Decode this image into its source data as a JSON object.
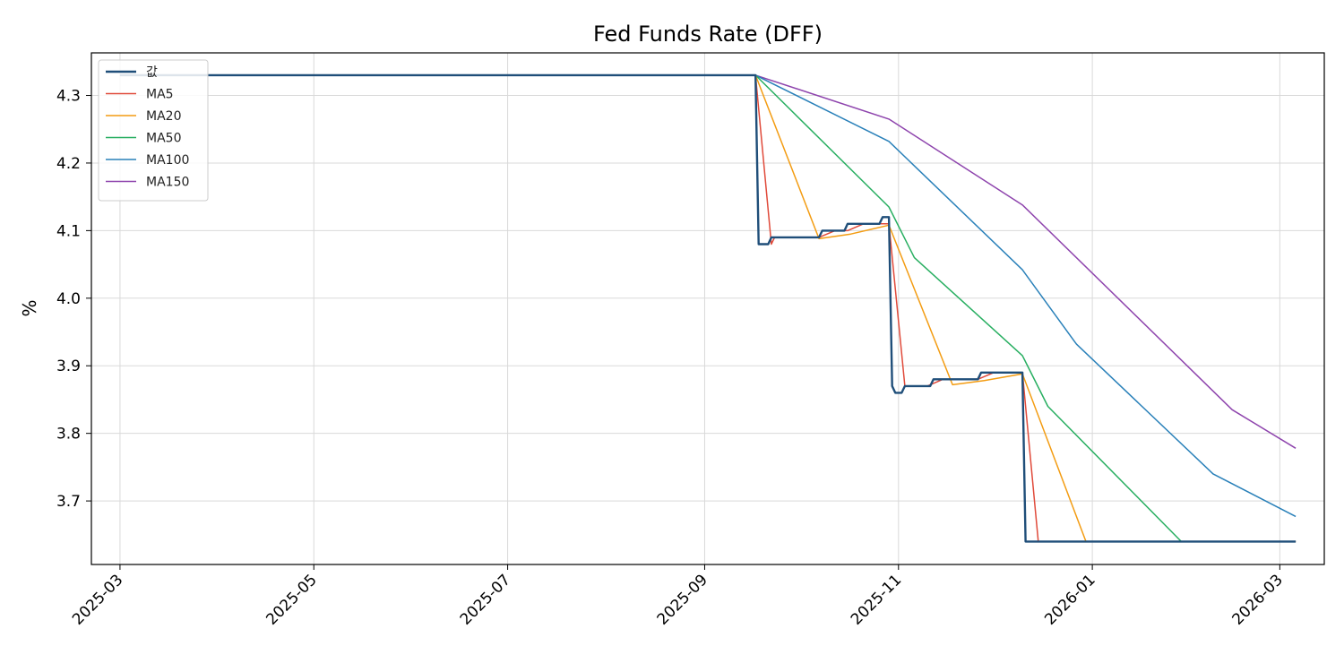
{
  "chart_data": {
    "type": "line",
    "title": "Fed Funds Rate (DFF)",
    "xlabel": "",
    "ylabel": "%",
    "x_ticks": [
      "2025-03",
      "2025-05",
      "2025-07",
      "2025-09",
      "2025-11",
      "2026-01",
      "2026-03"
    ],
    "y_ticks": [
      "3.7",
      "3.8",
      "3.9",
      "4.0",
      "4.1",
      "4.2",
      "4.3"
    ],
    "xlim": [
      "2025-02-20",
      "2026-03-15"
    ],
    "ylim": [
      3.606,
      4.363
    ],
    "grid": true,
    "legend_position": "top-left",
    "series": [
      {
        "name": "값",
        "color": "#1f4e79",
        "width": 2.4,
        "points": [
          [
            "2025-03-01",
            4.33
          ],
          [
            "2025-09-17",
            4.33
          ],
          [
            "2025-09-18",
            4.08
          ],
          [
            "2025-09-21",
            4.08
          ],
          [
            "2025-09-22",
            4.09
          ],
          [
            "2025-10-07",
            4.09
          ],
          [
            "2025-10-08",
            4.1
          ],
          [
            "2025-10-15",
            4.1
          ],
          [
            "2025-10-16",
            4.11
          ],
          [
            "2025-10-26",
            4.11
          ],
          [
            "2025-10-27",
            4.12
          ],
          [
            "2025-10-29",
            4.12
          ],
          [
            "2025-10-30",
            3.87
          ],
          [
            "2025-10-31",
            3.86
          ],
          [
            "2025-11-02",
            3.86
          ],
          [
            "2025-11-03",
            3.87
          ],
          [
            "2025-11-11",
            3.87
          ],
          [
            "2025-11-12",
            3.88
          ],
          [
            "2025-11-26",
            3.88
          ],
          [
            "2025-11-27",
            3.89
          ],
          [
            "2025-12-10",
            3.89
          ],
          [
            "2025-12-11",
            3.64
          ],
          [
            "2026-03-06",
            3.64
          ]
        ]
      },
      {
        "name": "MA5",
        "color": "#e04a3a",
        "width": 1.5,
        "points": [
          [
            "2025-03-01",
            4.33
          ],
          [
            "2025-09-17",
            4.33
          ],
          [
            "2025-09-22",
            4.08
          ],
          [
            "2025-09-23",
            4.09
          ],
          [
            "2025-10-07",
            4.09
          ],
          [
            "2025-10-12",
            4.1
          ],
          [
            "2025-10-16",
            4.1
          ],
          [
            "2025-10-21",
            4.11
          ],
          [
            "2025-10-29",
            4.11
          ],
          [
            "2025-11-03",
            3.87
          ],
          [
            "2025-11-10",
            3.87
          ],
          [
            "2025-11-15",
            3.88
          ],
          [
            "2025-11-26",
            3.88
          ],
          [
            "2025-12-01",
            3.89
          ],
          [
            "2025-12-10",
            3.89
          ],
          [
            "2025-12-15",
            3.64
          ],
          [
            "2026-03-06",
            3.64
          ]
        ]
      },
      {
        "name": "MA20",
        "color": "#f39c12",
        "width": 1.5,
        "points": [
          [
            "2025-03-01",
            4.33
          ],
          [
            "2025-09-17",
            4.33
          ],
          [
            "2025-10-07",
            4.088
          ],
          [
            "2025-10-17",
            4.095
          ],
          [
            "2025-10-29",
            4.108
          ],
          [
            "2025-11-18",
            3.872
          ],
          [
            "2025-11-28",
            3.878
          ],
          [
            "2025-12-10",
            3.888
          ],
          [
            "2025-12-30",
            3.64
          ],
          [
            "2026-03-06",
            3.64
          ]
        ]
      },
      {
        "name": "MA50",
        "color": "#27ae60",
        "width": 1.5,
        "points": [
          [
            "2025-03-01",
            4.33
          ],
          [
            "2025-09-17",
            4.33
          ],
          [
            "2025-10-29",
            4.135
          ],
          [
            "2025-11-06",
            4.06
          ],
          [
            "2025-12-10",
            3.915
          ],
          [
            "2025-12-18",
            3.84
          ],
          [
            "2026-01-29",
            3.64
          ],
          [
            "2026-03-06",
            3.64
          ]
        ]
      },
      {
        "name": "MA100",
        "color": "#2980b9",
        "width": 1.5,
        "points": [
          [
            "2025-03-01",
            4.33
          ],
          [
            "2025-09-17",
            4.33
          ],
          [
            "2025-10-29",
            4.232
          ],
          [
            "2025-12-10",
            4.042
          ],
          [
            "2025-12-27",
            3.932
          ],
          [
            "2026-02-08",
            3.74
          ],
          [
            "2026-03-06",
            3.677
          ]
        ]
      },
      {
        "name": "MA150",
        "color": "#8e44ad",
        "width": 1.5,
        "points": [
          [
            "2025-03-01",
            4.33
          ],
          [
            "2025-09-17",
            4.33
          ],
          [
            "2025-10-29",
            4.265
          ],
          [
            "2025-12-10",
            4.138
          ],
          [
            "2026-02-14",
            3.835
          ],
          [
            "2026-03-06",
            3.778
          ]
        ]
      }
    ]
  }
}
